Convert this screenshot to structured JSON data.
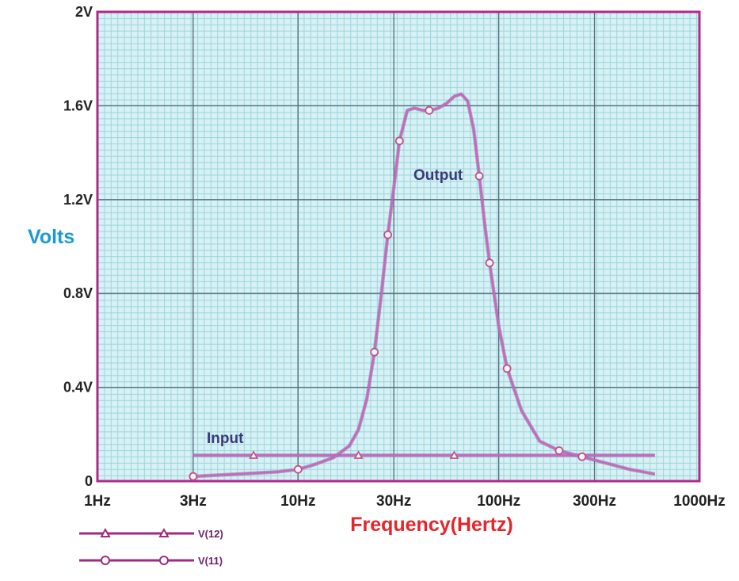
{
  "chart_data": {
    "type": "line",
    "ylabel": "Volts",
    "xlabel": "Frequency(Hertz)",
    "x_scale": "log",
    "xlim": [
      1,
      1000
    ],
    "ylim": [
      0,
      2
    ],
    "x_ticks": [
      {
        "value": 1,
        "label": "1Hz"
      },
      {
        "value": 3,
        "label": "3Hz"
      },
      {
        "value": 10,
        "label": "10Hz"
      },
      {
        "value": 30,
        "label": "30Hz"
      },
      {
        "value": 100,
        "label": "100Hz"
      },
      {
        "value": 300,
        "label": "300Hz"
      },
      {
        "value": 1000,
        "label": "1000Hz"
      }
    ],
    "y_ticks": [
      {
        "value": 0,
        "label": "0"
      },
      {
        "value": 0.4,
        "label": "0.4V"
      },
      {
        "value": 0.8,
        "label": "0.8V"
      },
      {
        "value": 1.2,
        "label": "1.2V"
      },
      {
        "value": 1.6,
        "label": "1.6V"
      },
      {
        "value": 2,
        "label": "2V"
      }
    ],
    "grid": true,
    "legend_position": "bottom-left",
    "series": [
      {
        "name": "V(12)",
        "annotation": "Input",
        "marker": "triangle",
        "color": "#cc66bb",
        "x": [
          3,
          6,
          20,
          60,
          600
        ],
        "y": [
          0.11,
          0.11,
          0.11,
          0.11,
          0.11
        ],
        "marker_x": [
          6,
          20,
          60
        ]
      },
      {
        "name": "V(11)",
        "annotation": "Output",
        "marker": "circle",
        "color": "#cc66bb",
        "x": [
          3,
          5,
          8,
          10,
          12,
          15,
          18,
          20,
          22,
          24,
          26,
          28,
          30,
          32,
          35,
          38,
          42,
          46,
          50,
          55,
          60,
          65,
          70,
          75,
          80,
          85,
          90,
          100,
          110,
          130,
          160,
          200,
          300,
          450,
          600
        ],
        "y": [
          0.02,
          0.03,
          0.04,
          0.05,
          0.07,
          0.1,
          0.15,
          0.22,
          0.35,
          0.55,
          0.8,
          1.05,
          1.25,
          1.45,
          1.58,
          1.59,
          1.58,
          1.58,
          1.59,
          1.61,
          1.64,
          1.65,
          1.62,
          1.5,
          1.3,
          1.1,
          0.93,
          0.66,
          0.48,
          0.3,
          0.17,
          0.13,
          0.09,
          0.05,
          0.03
        ],
        "marker_x": [
          3,
          10,
          24,
          28,
          32,
          45,
          80,
          90,
          110,
          200,
          260
        ]
      }
    ]
  }
}
